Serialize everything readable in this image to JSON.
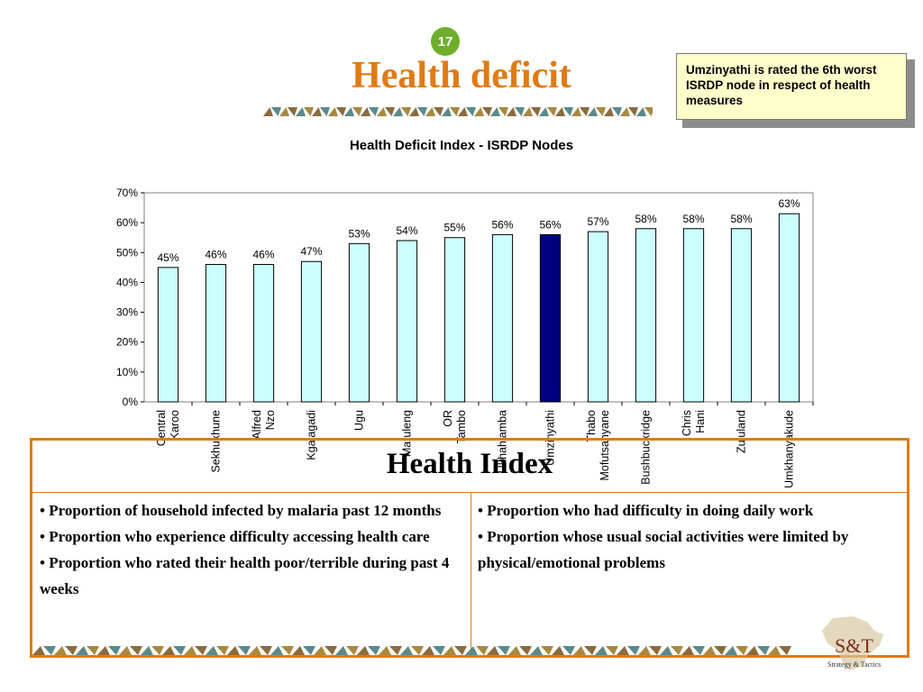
{
  "slide_number": "17",
  "title": "Health deficit",
  "callout_text": "Umzinyathi is rated the 6th worst ISRDP node in respect of health measures",
  "colors": {
    "accent": "#e07b16",
    "badge": "#6fae2c",
    "bar_default": "#ccffff",
    "bar_highlight": "#000080",
    "callout_bg": "#ffffcc"
  },
  "chart_data": {
    "type": "bar",
    "title": "Health Deficit Index - ISRDP Nodes",
    "categories": [
      "Central Karoo",
      "Sekhukhune",
      "Alfred Nzo",
      "Kgalagadi",
      "Ugu",
      "Maruleng",
      "OR Tambo",
      "Ukhahlamba",
      "Umzinyathi",
      "Thabo Mofutsanyane",
      "Bushbuckridge",
      "Chris Hani",
      "Zululand",
      "Umkhanyakude"
    ],
    "values": [
      45,
      46,
      46,
      47,
      53,
      54,
      55,
      56,
      56,
      57,
      58,
      58,
      58,
      63
    ],
    "value_labels": [
      "45%",
      "46%",
      "46%",
      "47%",
      "53%",
      "54%",
      "55%",
      "56%",
      "56%",
      "57%",
      "58%",
      "58%",
      "58%",
      "63%"
    ],
    "highlight_category": "Umzinyathi",
    "ylim": [
      0,
      70
    ],
    "yticks": [
      "0%",
      "10%",
      "20%",
      "30%",
      "40%",
      "50%",
      "60%",
      "70%"
    ],
    "grid": false,
    "legend": "none"
  },
  "health_index": {
    "title": "Health Index",
    "left_items": [
      "Proportion of household infected by malaria past 12 months",
      "Proportion who experience difficulty accessing health care",
      "Proportion who rated their health poor/terrible during past 4 weeks"
    ],
    "right_items": [
      "Proportion who had difficulty in doing daily work",
      "Proportion whose usual social activities were limited by physical/emotional problems"
    ]
  },
  "logo": {
    "text": "S&T",
    "subtitle": "Strategy & Tactics"
  }
}
